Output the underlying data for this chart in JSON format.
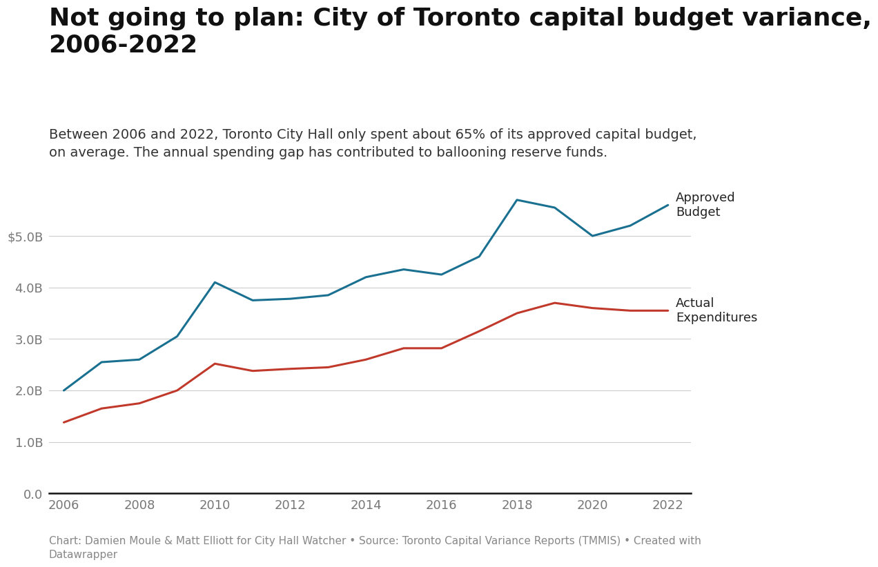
{
  "title": "Not going to plan: City of Toronto capital budget variance,\n2006-2022",
  "subtitle": "Between 2006 and 2022, Toronto City Hall only spent about 65% of its approved capital budget,\non average. The annual spending gap has contributed to ballooning reserve funds.",
  "footnote": "Chart: Damien Moule & Matt Elliott for City Hall Watcher • Source: Toronto Capital Variance Reports (TMMIS) • Created with\nDatawrapper",
  "years": [
    2006,
    2007,
    2008,
    2009,
    2010,
    2011,
    2012,
    2013,
    2014,
    2015,
    2016,
    2017,
    2018,
    2019,
    2020,
    2021,
    2022
  ],
  "approved_budget": [
    2.0,
    2.55,
    2.6,
    3.05,
    4.1,
    3.75,
    3.78,
    3.85,
    4.2,
    4.35,
    4.25,
    4.6,
    5.7,
    5.55,
    5.0,
    5.2,
    5.6
  ],
  "actual_expenditures": [
    1.38,
    1.65,
    1.75,
    2.0,
    2.52,
    2.38,
    2.42,
    2.45,
    2.6,
    2.82,
    2.82,
    3.15,
    3.5,
    3.7,
    3.6,
    3.55,
    3.55
  ],
  "approved_color": "#1a7090",
  "actual_color": "#c0392b",
  "background_color": "#ffffff",
  "ylim": [
    0,
    6.3
  ],
  "yticks": [
    0.0,
    1.0,
    2.0,
    3.0,
    4.0,
    5.0
  ],
  "ytick_labels": [
    "0.0",
    "1.0B",
    "2.0B",
    "3.0B",
    "4.0B",
    "$5.0B"
  ],
  "xticks": [
    2006,
    2008,
    2010,
    2012,
    2014,
    2016,
    2018,
    2020,
    2022
  ],
  "label_approved": "Approved\nBudget",
  "label_actual": "Actual\nExpenditures",
  "line_width": 2.2,
  "title_fontsize": 26,
  "subtitle_fontsize": 14,
  "tick_fontsize": 13,
  "annotation_fontsize": 13,
  "footnote_fontsize": 11
}
